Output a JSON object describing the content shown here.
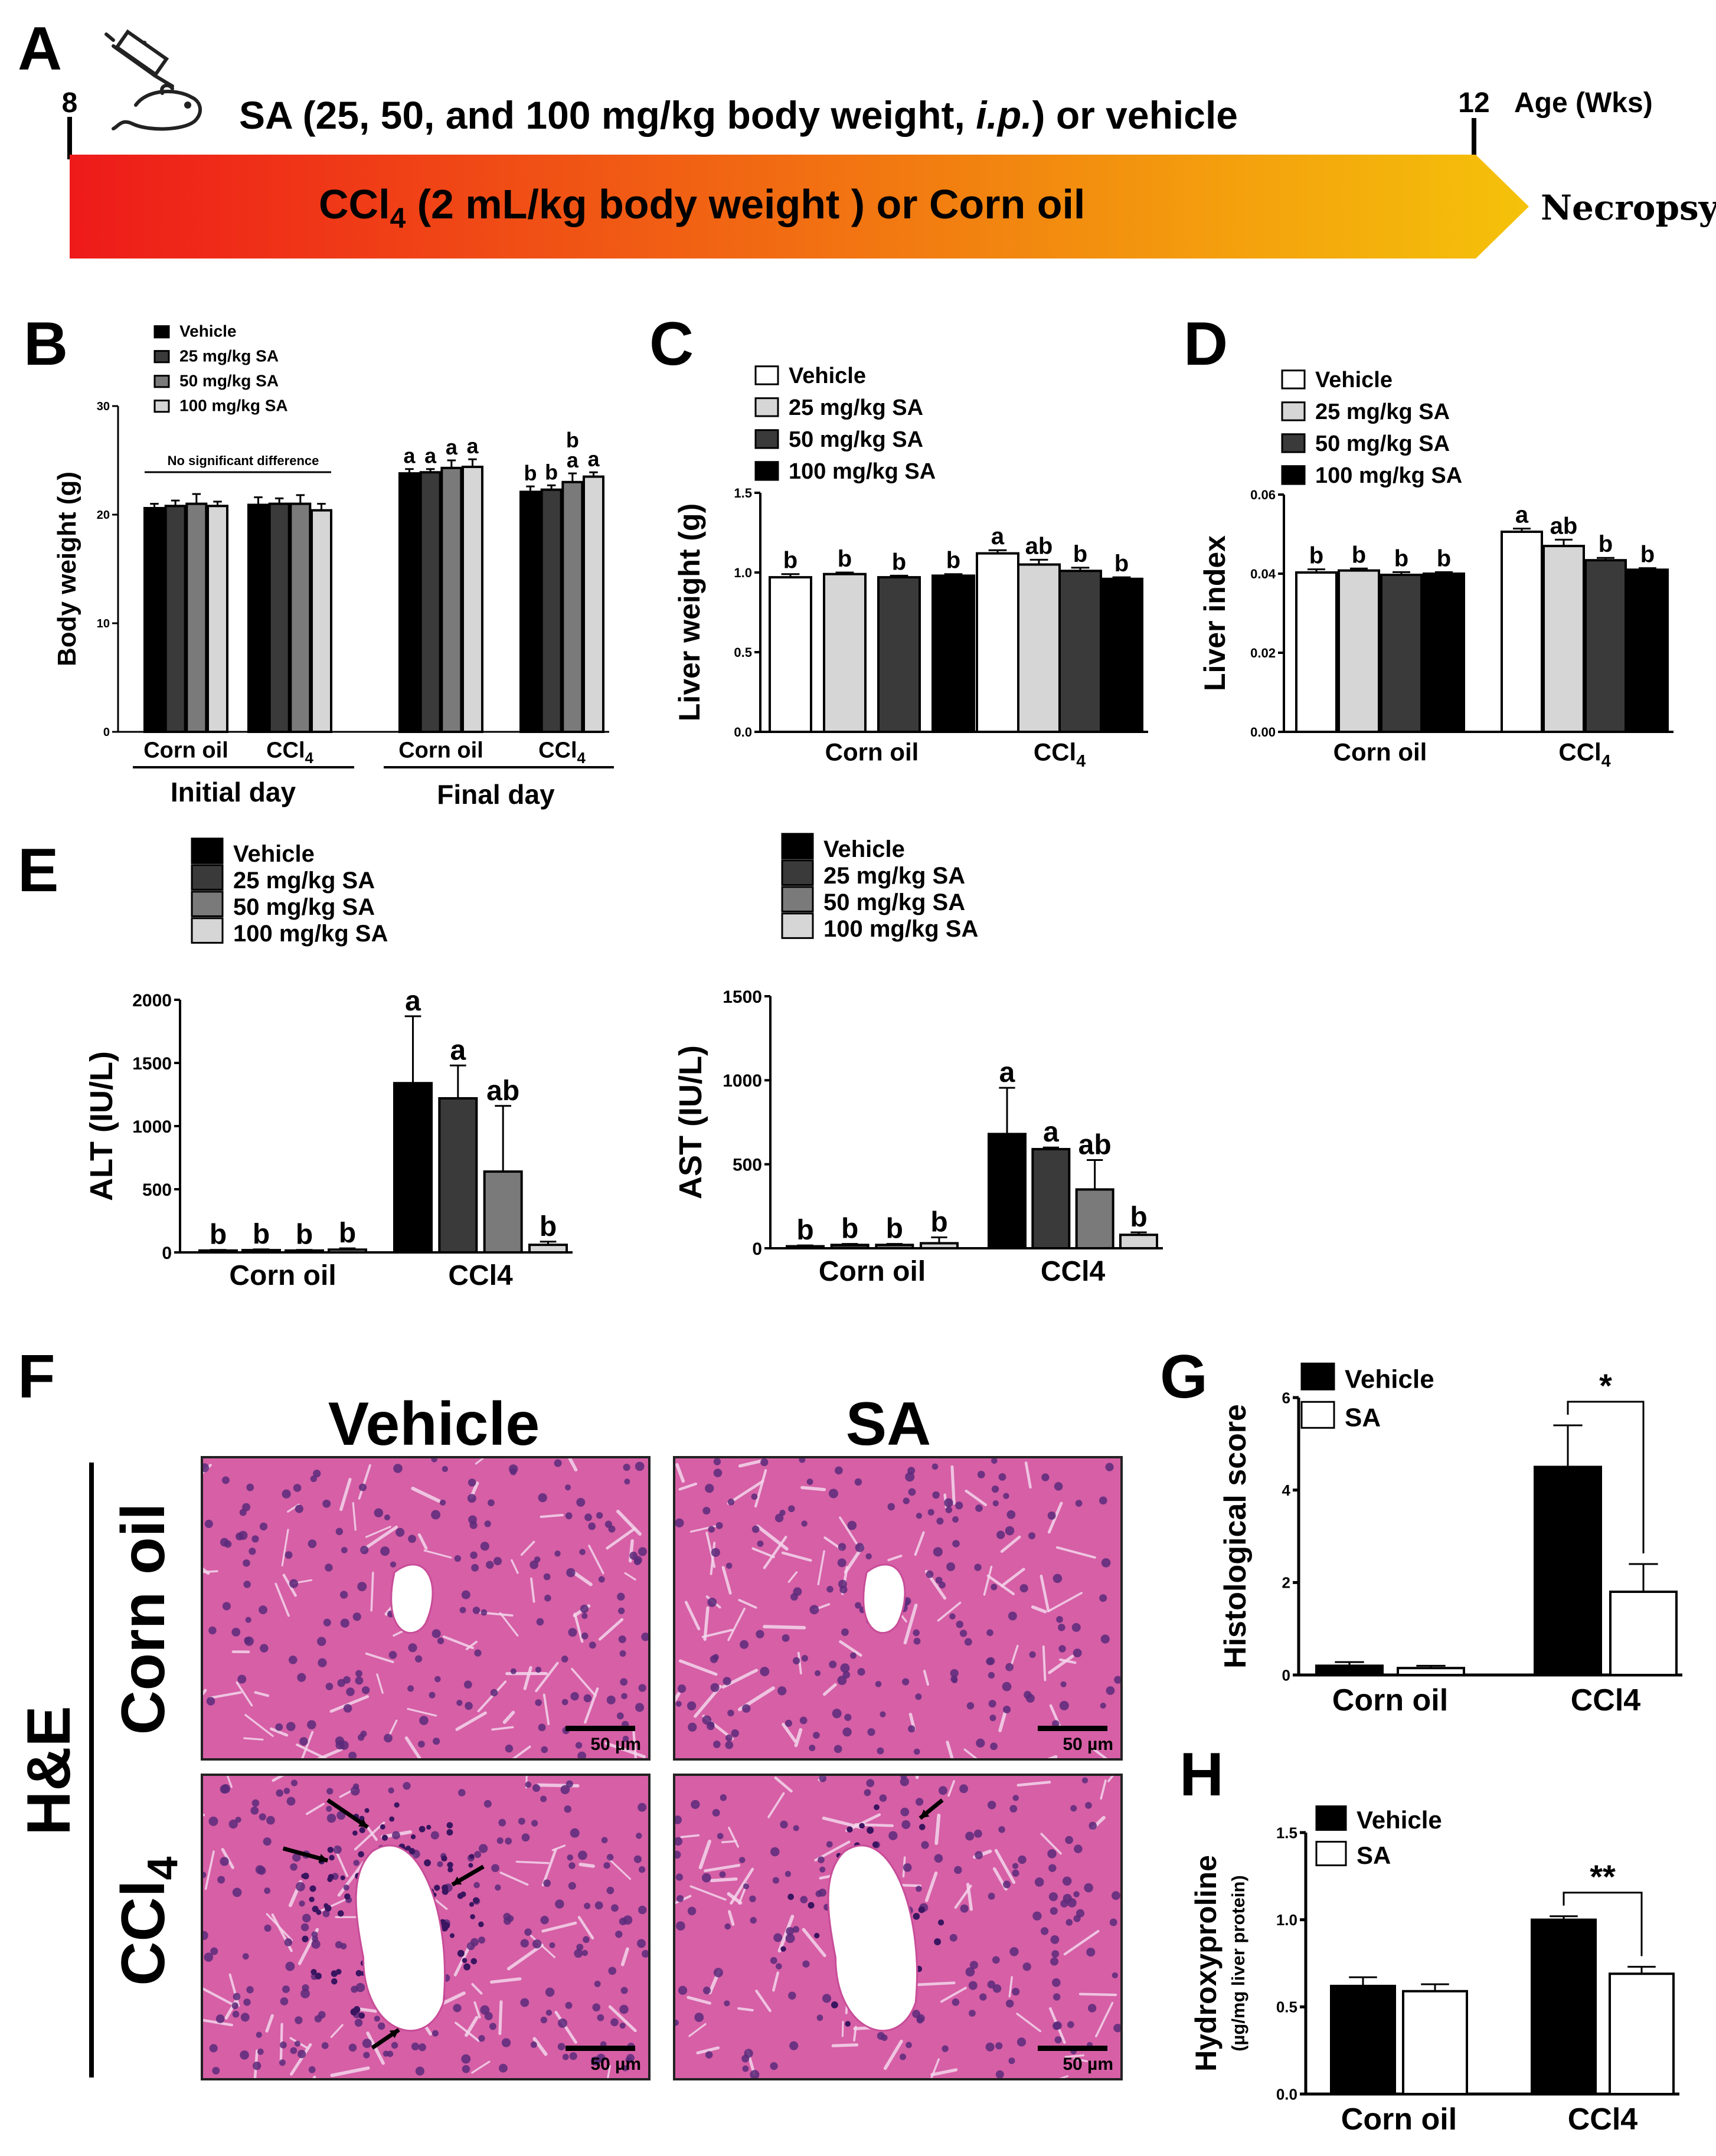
{
  "panel_letters": [
    "A",
    "B",
    "C",
    "D",
    "E",
    "F",
    "G",
    "H"
  ],
  "timeline": {
    "start_week": "8",
    "end_week": "12",
    "age_label": "Age (Wks)",
    "treatment": {
      "prefix": "SA (25, 50, and 100 mg/kg body weight, ",
      "route": "i.p.",
      "suffix": ") or vehicle"
    },
    "arrow_text": {
      "pre": "CCl",
      "sub": "4",
      "post": " (2 mL/kg body weight ) or Corn oil"
    },
    "end_label": "Necropsy",
    "colors": {
      "start": "#ee1a1a",
      "end": "#f5c20a"
    }
  },
  "colors": {
    "black": "#000000",
    "dark": "#3a3a3a",
    "mid": "#7a7a7a",
    "light": "#d6d6d6",
    "white": "#ffffff",
    "tissue": "#d65fa6",
    "tissue_dark": "#5a2a7a"
  },
  "chart_data": [
    {
      "id": "B",
      "type": "bar",
      "ylabel": "Body weight (g)",
      "ylim": [
        0,
        30
      ],
      "yticks": [
        "0",
        "10",
        "20",
        "30"
      ],
      "legend": [
        "Vehicle",
        "25 mg/kg SA",
        "50 mg/kg SA",
        "100 mg/kg SA"
      ],
      "series_colors": [
        "black",
        "dark",
        "mid",
        "light"
      ],
      "categories": [
        {
          "name": "Corn oil",
          "sub": "",
          "values": [
            20.6,
            20.8,
            21.0,
            20.8
          ],
          "errors": [
            0.4,
            0.5,
            0.9,
            0.4
          ],
          "letters": []
        },
        {
          "name": "CCl",
          "sub": "4",
          "values": [
            20.9,
            21.0,
            21.0,
            20.4
          ],
          "errors": [
            0.7,
            0.5,
            0.8,
            0.6
          ],
          "letters": []
        },
        {
          "name": "Corn oil",
          "sub": "",
          "values": [
            23.8,
            23.9,
            24.3,
            24.4
          ],
          "errors": [
            0.4,
            0.3,
            0.7,
            0.7
          ],
          "letters": [
            [
              "a"
            ],
            [
              "a"
            ],
            [
              "a"
            ],
            [
              "a"
            ]
          ]
        },
        {
          "name": "CCl",
          "sub": "4",
          "values": [
            22.1,
            22.3,
            23.0,
            23.5
          ],
          "errors": [
            0.5,
            0.4,
            0.8,
            0.4
          ],
          "letters": [
            [
              "b"
            ],
            [
              "b"
            ],
            [
              "b",
              "a"
            ],
            [
              "a"
            ]
          ]
        }
      ],
      "annotation": "No significant difference",
      "groups": [
        "Initial day",
        "Final day"
      ]
    },
    {
      "id": "C",
      "type": "bar",
      "ylabel": "Liver weight (g)",
      "ylim": [
        0,
        1.5
      ],
      "yticks": [
        "0.0",
        "0.5",
        "1.0",
        "1.5"
      ],
      "legend": [
        "Vehicle",
        "25 mg/kg SA",
        "50 mg/kg SA",
        "100 mg/kg SA"
      ],
      "series_colors": [
        "white",
        "light",
        "dark",
        "black"
      ],
      "categories": [
        {
          "name": "Corn oil",
          "sub": "",
          "values": [
            0.97,
            0.99,
            0.97,
            0.98
          ],
          "errors": [
            0.02,
            0.01,
            0.01,
            0.01
          ],
          "letters": [
            [
              "b"
            ],
            [
              "b"
            ],
            [
              "b"
            ],
            [
              "b"
            ]
          ]
        },
        {
          "name": "CCl",
          "sub": "4",
          "values": [
            1.12,
            1.05,
            1.01,
            0.96
          ],
          "errors": [
            0.02,
            0.03,
            0.02,
            0.01
          ],
          "letters": [
            [
              "a"
            ],
            [
              "ab"
            ],
            [
              "b"
            ],
            [
              "b"
            ]
          ]
        }
      ]
    },
    {
      "id": "D",
      "type": "bar",
      "ylabel": "Liver index",
      "ylim": [
        0,
        0.06
      ],
      "yticks": [
        "0.00",
        "0.02",
        "0.04",
        "0.06"
      ],
      "legend": [
        "Vehicle",
        "25 mg/kg SA",
        "50 mg/kg SA",
        "100 mg/kg SA"
      ],
      "series_colors": [
        "white",
        "light",
        "dark",
        "black"
      ],
      "categories": [
        {
          "name": "Corn oil",
          "sub": "",
          "values": [
            0.0403,
            0.0408,
            0.0397,
            0.04
          ],
          "errors": [
            0.0008,
            0.0005,
            0.0007,
            0.0004
          ],
          "letters": [
            [
              "b"
            ],
            [
              "b"
            ],
            [
              "b"
            ],
            [
              "b"
            ]
          ]
        },
        {
          "name": "CCl",
          "sub": "4",
          "values": [
            0.0506,
            0.047,
            0.0434,
            0.041
          ],
          "errors": [
            0.0008,
            0.0016,
            0.0006,
            0.0004
          ],
          "letters": [
            [
              "a"
            ],
            [
              "ab"
            ],
            [
              "b"
            ],
            [
              "b"
            ]
          ]
        }
      ]
    },
    {
      "id": "E1",
      "type": "bar",
      "ylabel": "ALT (IU/L)",
      "ylim": [
        0,
        2000
      ],
      "yticks": [
        "0",
        "500",
        "1000",
        "1500",
        "2000"
      ],
      "legend": [
        "Vehicle",
        "25 mg/kg SA",
        "50 mg/kg SA",
        "100 mg/kg SA"
      ],
      "series_colors": [
        "black",
        "dark",
        "mid",
        "light"
      ],
      "categories": [
        {
          "name": "Corn oil",
          "sub": "",
          "values": [
            15,
            18,
            15,
            22
          ],
          "errors": [
            5,
            6,
            5,
            10
          ],
          "letters": [
            [
              "b"
            ],
            [
              "b"
            ],
            [
              "b"
            ],
            [
              "b"
            ]
          ]
        },
        {
          "name": "CCl4",
          "sub": "",
          "values": [
            1340,
            1220,
            640,
            60
          ],
          "errors": [
            530,
            260,
            520,
            25
          ],
          "letters": [
            [
              "a"
            ],
            [
              "a"
            ],
            [
              "ab"
            ],
            [
              "b"
            ]
          ]
        }
      ]
    },
    {
      "id": "E2",
      "type": "bar",
      "ylabel": "AST (IU/L)",
      "ylim": [
        0,
        1500
      ],
      "yticks": [
        "0",
        "500",
        "1000",
        "1500"
      ],
      "legend": [
        "Vehicle",
        "25 mg/kg SA",
        "50 mg/kg SA",
        "100 mg/kg SA"
      ],
      "series_colors": [
        "black",
        "dark",
        "mid",
        "light"
      ],
      "categories": [
        {
          "name": "Corn oil",
          "sub": "",
          "values": [
            12,
            20,
            20,
            30
          ],
          "errors": [
            5,
            6,
            6,
            35
          ],
          "letters": [
            [
              "b"
            ],
            [
              "b"
            ],
            [
              "b"
            ],
            [
              "b"
            ]
          ]
        },
        {
          "name": "CCl4",
          "sub": "",
          "values": [
            680,
            590,
            350,
            80
          ],
          "errors": [
            275,
            10,
            175,
            15
          ],
          "letters": [
            [
              "a"
            ],
            [
              "a"
            ],
            [
              "ab"
            ],
            [
              "b"
            ]
          ]
        }
      ]
    },
    {
      "id": "G",
      "type": "bar",
      "ylabel": "Histological score",
      "ylim": [
        0,
        6
      ],
      "yticks": [
        "0",
        "2",
        "4",
        "6"
      ],
      "legend": [
        "Vehicle",
        "SA"
      ],
      "series_colors": [
        "black",
        "white"
      ],
      "categories": [
        {
          "name": "Corn oil",
          "sub": "",
          "values": [
            0.2,
            0.15
          ],
          "errors": [
            0.08,
            0.05
          ],
          "letters": []
        },
        {
          "name": "CCl4",
          "sub": "",
          "values": [
            4.5,
            1.8
          ],
          "errors": [
            0.9,
            0.6
          ],
          "letters": []
        }
      ],
      "significance": "*"
    },
    {
      "id": "H",
      "type": "bar",
      "ylabel": "Hydroxyproline",
      "ylabel2": "(µg/mg liver protein)",
      "ylim": [
        0,
        1.5
      ],
      "yticks": [
        "0.0",
        "0.5",
        "1.0",
        "1.5"
      ],
      "legend": [
        "Vehicle",
        "SA"
      ],
      "series_colors": [
        "black",
        "white"
      ],
      "categories": [
        {
          "name": "Corn oil",
          "sub": "",
          "values": [
            0.62,
            0.59
          ],
          "errors": [
            0.05,
            0.04
          ],
          "letters": []
        },
        {
          "name": "CCl4",
          "sub": "",
          "values": [
            1.0,
            0.69
          ],
          "errors": [
            0.02,
            0.04
          ],
          "letters": []
        }
      ],
      "significance": "**"
    }
  ],
  "histology": {
    "col_headers": [
      "Vehicle",
      "SA"
    ],
    "row_labels": [
      {
        "pre": "Corn oil",
        "sub": ""
      },
      {
        "pre": "CCl",
        "sub": "4"
      }
    ],
    "stain": "H&E",
    "scale_label": "50 µm"
  }
}
